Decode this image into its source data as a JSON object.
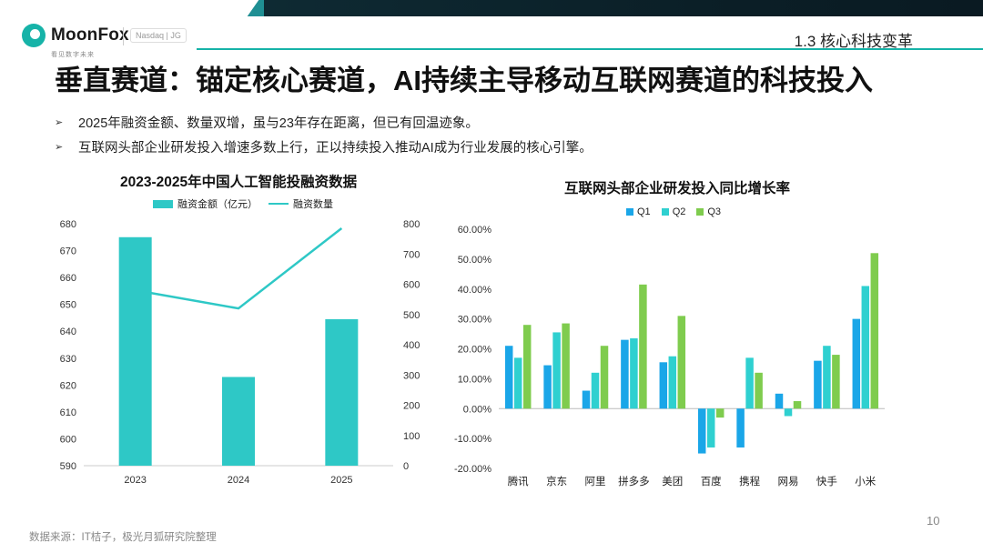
{
  "brand": {
    "name": "MoonFox",
    "tagline": "看见数字未来",
    "exchange": "Nasdaq | JG"
  },
  "section": "1.3 核心科技变革",
  "title": "垂直赛道：锚定核心赛道，AI持续主导移动互联网赛道的科技投入",
  "bullets": [
    "2025年融资金额、数量双增，虽与23年存在距离，但已有回温迹象。",
    "互联网头部企业研发投入增速多数上行，正以持续投入推动AI成为行业发展的核心引擎。"
  ],
  "colors": {
    "teal": "#2ec8c6",
    "q1": "#1aa6e8",
    "q2": "#2fd0d0",
    "q3": "#7fcc4e"
  },
  "chart_data": [
    {
      "type": "bar",
      "title": "2023-2025年中国人工智能投融资数据",
      "categories": [
        "2023",
        "2024",
        "2025"
      ],
      "series": [
        {
          "name": "融资金额（亿元）",
          "type": "bar",
          "axis": "left",
          "values": [
            675,
            623,
            644.5
          ]
        },
        {
          "name": "融资数量",
          "type": "line",
          "axis": "right",
          "values": [
            580,
            520,
            785
          ]
        }
      ],
      "ylim": [
        590,
        680
      ],
      "yticks": [
        "590",
        "600",
        "610",
        "620",
        "630",
        "640",
        "650",
        "660",
        "670",
        "680"
      ],
      "ylim_right": [
        0,
        800
      ],
      "yticks_right": [
        "0",
        "100",
        "200",
        "300",
        "400",
        "500",
        "600",
        "700",
        "800"
      ]
    },
    {
      "type": "bar",
      "title": "互联网头部企业研发投入同比增长率",
      "categories": [
        "腾讯",
        "京东",
        "阿里",
        "拼多多",
        "美团",
        "百度",
        "携程",
        "网易",
        "快手",
        "小米"
      ],
      "series": [
        {
          "name": "Q1",
          "values": [
            21,
            14.5,
            6,
            23,
            15.5,
            -15,
            -13,
            5,
            16,
            30
          ]
        },
        {
          "name": "Q2",
          "values": [
            17,
            25.5,
            12,
            23.5,
            17.5,
            -13,
            17,
            -2.5,
            21,
            41
          ]
        },
        {
          "name": "Q3",
          "values": [
            28,
            28.5,
            21,
            41.5,
            31,
            -3,
            12,
            2.5,
            18,
            52
          ]
        }
      ],
      "ylim": [
        -20,
        60
      ],
      "yticks": [
        "-20.00%",
        "-10.00%",
        "0.00%",
        "10.00%",
        "20.00%",
        "30.00%",
        "40.00%",
        "50.00%",
        "60.00%"
      ]
    }
  ],
  "footer": "数据来源：IT桔子，极光月狐研究院整理",
  "page_number": "10"
}
